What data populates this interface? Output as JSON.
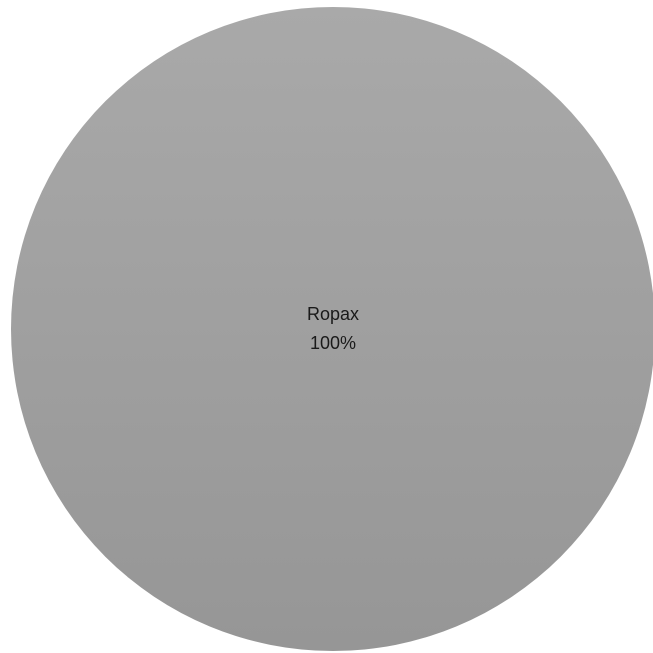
{
  "chart_data": {
    "type": "pie",
    "title": "",
    "slices": [
      {
        "label": "Ropax",
        "value": 100,
        "percent_label": "100%",
        "color": "#a6a6a6"
      }
    ],
    "legend": "none"
  },
  "colors": {
    "slice_top": "#a9a9a9",
    "slice_bottom": "#969696",
    "label_text": "#1a1a1a"
  }
}
